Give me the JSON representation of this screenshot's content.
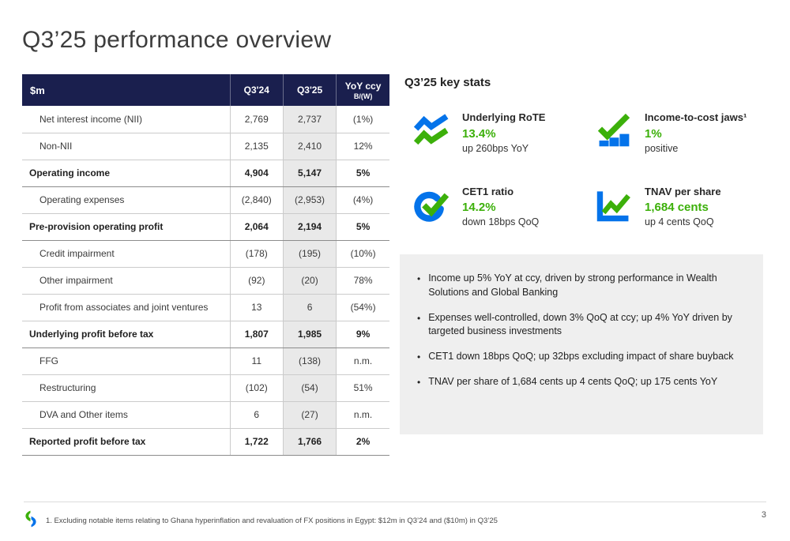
{
  "slide": {
    "title": "Q3’25 performance overview",
    "page_number": "3",
    "footnote": "1. Excluding notable items relating to Ghana hyperinflation and revaluation of FX positions in Egypt: $12m in Q3’24 and ($10m) in Q3’25"
  },
  "colors": {
    "navy": "#1a1f4e",
    "blue": "#0473ea",
    "green": "#3cb00a",
    "table-shade": "#e9e9e9",
    "box-gray": "#efefef"
  },
  "table": {
    "headers": [
      "$m",
      "Q3'24",
      "Q3'25",
      "YoY ccy",
      "B/(W)"
    ],
    "rows": [
      {
        "label": "Net interest income (NII)",
        "q324": "2,769",
        "q325": "2,737",
        "yoy": "(1%)",
        "bold": false,
        "indent": true
      },
      {
        "label": "Non-NII",
        "q324": "2,135",
        "q325": "2,410",
        "yoy": "12%",
        "bold": false,
        "indent": true
      },
      {
        "label": "Operating income",
        "q324": "4,904",
        "q325": "5,147",
        "yoy": "5%",
        "bold": true,
        "indent": false
      },
      {
        "label": "Operating expenses",
        "q324": "(2,840)",
        "q325": "(2,953)",
        "yoy": "(4%)",
        "bold": false,
        "indent": true
      },
      {
        "label": "Pre-provision operating profit",
        "q324": "2,064",
        "q325": "2,194",
        "yoy": "5%",
        "bold": true,
        "indent": false
      },
      {
        "label": "Credit impairment",
        "q324": "(178)",
        "q325": "(195)",
        "yoy": "(10%)",
        "bold": false,
        "indent": true
      },
      {
        "label": "Other impairment",
        "q324": "(92)",
        "q325": "(20)",
        "yoy": "78%",
        "bold": false,
        "indent": true
      },
      {
        "label": "Profit from associates and joint ventures",
        "q324": "13",
        "q325": "6",
        "yoy": "(54%)",
        "bold": false,
        "indent": true
      },
      {
        "label": "Underlying profit before tax",
        "q324": "1,807",
        "q325": "1,985",
        "yoy": "9%",
        "bold": true,
        "indent": false
      },
      {
        "label": "FFG",
        "q324": "11",
        "q325": "(138)",
        "yoy": "n.m.",
        "bold": false,
        "indent": true
      },
      {
        "label": "Restructuring",
        "q324": "(102)",
        "q325": "(54)",
        "yoy": "51%",
        "bold": false,
        "indent": true
      },
      {
        "label": "DVA and Other items",
        "q324": "6",
        "q325": "(27)",
        "yoy": "n.m.",
        "bold": false,
        "indent": true
      },
      {
        "label": "Reported profit before tax",
        "q324": "1,722",
        "q325": "1,766",
        "yoy": "2%",
        "bold": true,
        "indent": false
      }
    ]
  },
  "key_stats": {
    "title": "Q3’25 key stats",
    "stats": [
      {
        "id": "underlying-rote",
        "icon": "jaws-trend-icon",
        "label": "Underlying RoTE",
        "value": "13.4%",
        "sub": "up 260bps YoY"
      },
      {
        "id": "income-to-cost-jaws",
        "icon": "check-bars-icon",
        "label": "Income-to-cost jaws¹",
        "value": "1%",
        "sub": "positive"
      },
      {
        "id": "cet1-ratio",
        "icon": "gauge-check-icon",
        "label": "CET1 ratio",
        "value": "14.2%",
        "sub": "down 18bps QoQ"
      },
      {
        "id": "tnav-per-share",
        "icon": "trend-chart-icon",
        "label": "TNAV per share",
        "value": "1,684 cents",
        "sub": "up 4 cents QoQ"
      }
    ],
    "bullets": [
      "Income up 5% YoY at ccy, driven by strong performance in Wealth Solutions and Global Banking",
      "Expenses well-controlled, down 3% QoQ at ccy; up 4% YoY driven by targeted business investments",
      "CET1 down 18bps QoQ; up 32bps excluding impact of share buyback",
      "TNAV per share of 1,684 cents up 4 cents QoQ; up 175 cents YoY"
    ]
  }
}
